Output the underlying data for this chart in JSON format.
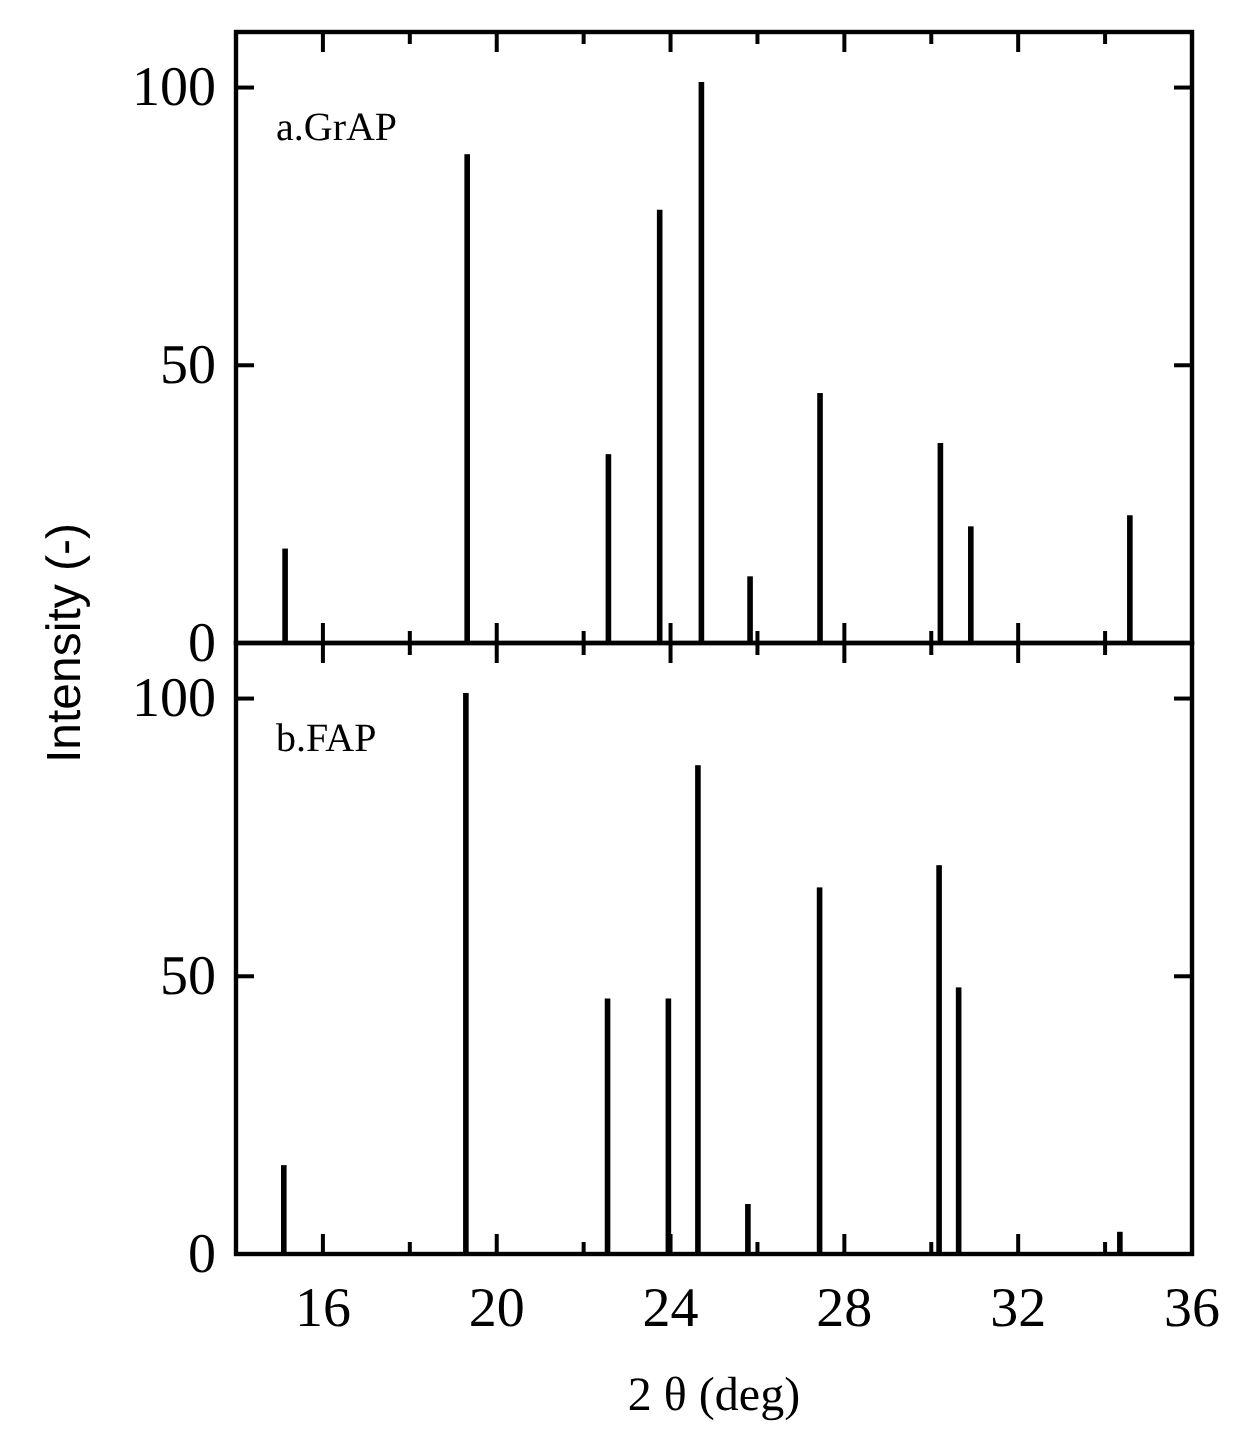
{
  "chart_data": [
    {
      "type": "bar",
      "title": "a.GrAP",
      "ylabel": "Intensity (-)",
      "color": "#000000",
      "x": [
        15.13,
        19.32,
        22.57,
        23.75,
        24.71,
        25.83,
        27.44,
        30.21,
        30.91,
        34.57
      ],
      "values": [
        17,
        88,
        34,
        78,
        101,
        12,
        45,
        36,
        21,
        23
      ],
      "xlim": [
        14,
        36
      ],
      "ylim": [
        0,
        110
      ],
      "xticks": [
        16,
        {
          "value": 18,
          "label": null
        },
        20,
        {
          "value": 22,
          "label": null
        },
        24,
        {
          "value": 26,
          "label": null
        },
        28,
        {
          "value": 30,
          "label": null
        },
        32,
        {
          "value": 34,
          "label": null
        },
        36
      ],
      "yticks": [
        0,
        50,
        100
      ],
      "tick_labels": "y"
    },
    {
      "type": "bar",
      "title": "b.FAP",
      "xlabel": "2 θ  (deg)",
      "color": "#000000",
      "x": [
        15.1,
        19.29,
        22.55,
        23.95,
        24.63,
        25.78,
        27.43,
        30.18,
        30.63,
        34.34
      ],
      "values": [
        16,
        101,
        46,
        46,
        88,
        9,
        66,
        70,
        48,
        4
      ],
      "xlim": [
        14,
        36
      ],
      "ylim": [
        0,
        110
      ],
      "xticks": [
        16,
        {
          "value": 18,
          "label": null
        },
        20,
        {
          "value": 22,
          "label": null
        },
        24,
        {
          "value": 26,
          "label": null
        },
        28,
        {
          "value": 30,
          "label": null
        },
        32,
        {
          "value": 34,
          "label": null
        },
        36
      ],
      "yticks": [
        0,
        50,
        100
      ]
    }
  ]
}
